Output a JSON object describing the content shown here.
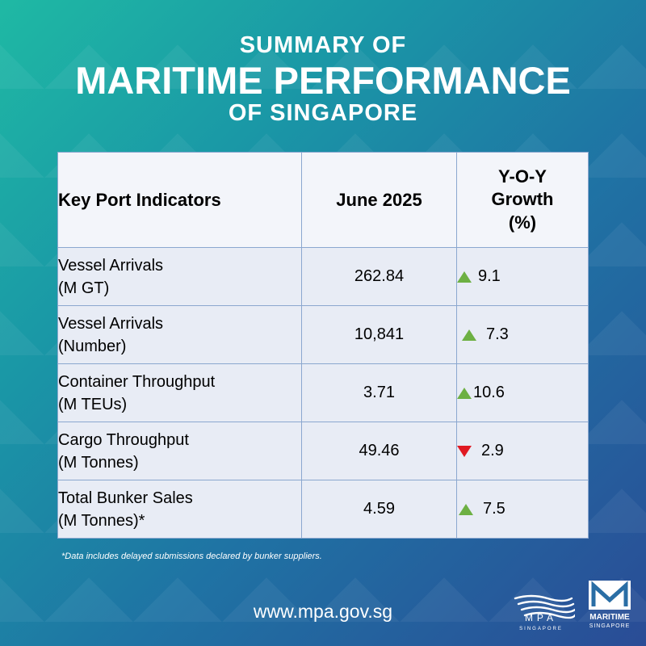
{
  "header": {
    "line1": "SUMMARY OF",
    "line2": "MARITIME PERFORMANCE",
    "line3": "OF SINGAPORE"
  },
  "table": {
    "headers": {
      "indicator": "Key Port Indicators",
      "june": "June 2025",
      "yoy_line1": "Y-O-Y",
      "yoy_line2": "Growth",
      "yoy_line3": "(%)"
    },
    "rows": [
      {
        "name": "Vessel Arrivals",
        "unit": "(M GT)",
        "value": "262.84",
        "growth": "9.1",
        "direction": "up"
      },
      {
        "name": "Vessel Arrivals",
        "unit": "(Number)",
        "value": "10,841",
        "growth": "7.3",
        "direction": "up"
      },
      {
        "name": "Container Throughput",
        "unit": "(M TEUs)",
        "value": "3.71",
        "growth": "10.6",
        "direction": "up"
      },
      {
        "name": "Cargo Throughput",
        "unit": "(M Tonnes)",
        "value": "49.46",
        "growth": "2.9",
        "direction": "down"
      },
      {
        "name": "Total Bunker Sales",
        "unit": "(M Tonnes)*",
        "value": "4.59",
        "growth": "7.5",
        "direction": "up"
      }
    ]
  },
  "footnote": "*Data includes delayed submissions declared by bunker suppliers.",
  "website": "www.mpa.gov.sg",
  "logos": {
    "mpa_text": "MPA",
    "mpa_sub": "SINGAPORE",
    "ms_text": "MARITIME",
    "ms_sub": "SINGAPORE"
  },
  "colors": {
    "up_arrow": "#6db043",
    "down_arrow": "#e01922",
    "table_border": "#8ba7cf"
  }
}
